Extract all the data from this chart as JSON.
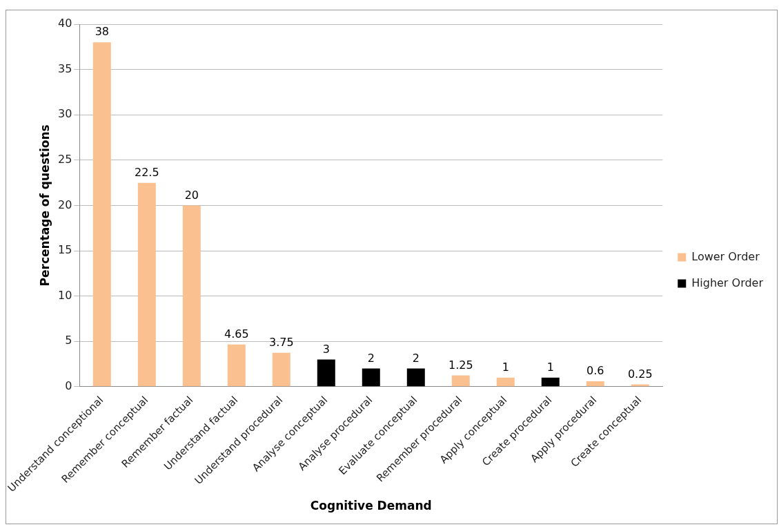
{
  "chart_data": {
    "type": "bar",
    "xlabel": "Cognitive Demand",
    "ylabel": "Percentage of questions",
    "categories": [
      "Understand conceptional",
      "Remember conceptual",
      "Remember factual",
      "Understand factual",
      "Understand procedural",
      "Analyse conceptual",
      "Analyse procedural",
      "Evaluate conceptual",
      "Remember procedural",
      "Apply conceptual",
      "Create procedural",
      "Apply procedural",
      "Create conceptual"
    ],
    "series": [
      {
        "name": "Lower Order",
        "color": "#fac090",
        "values": [
          38,
          22.5,
          20,
          4.65,
          3.75,
          null,
          null,
          null,
          1.25,
          1,
          null,
          0.6,
          0.25
        ]
      },
      {
        "name": "Higher Order",
        "color": "#000000",
        "values": [
          null,
          null,
          null,
          null,
          null,
          3,
          2,
          2,
          null,
          null,
          1,
          null,
          null
        ]
      }
    ],
    "ylim": [
      0,
      40
    ],
    "yticks": [
      0,
      5,
      10,
      15,
      20,
      25,
      30,
      35,
      40
    ],
    "grid": "y",
    "legend": "right",
    "data_labels": true
  }
}
